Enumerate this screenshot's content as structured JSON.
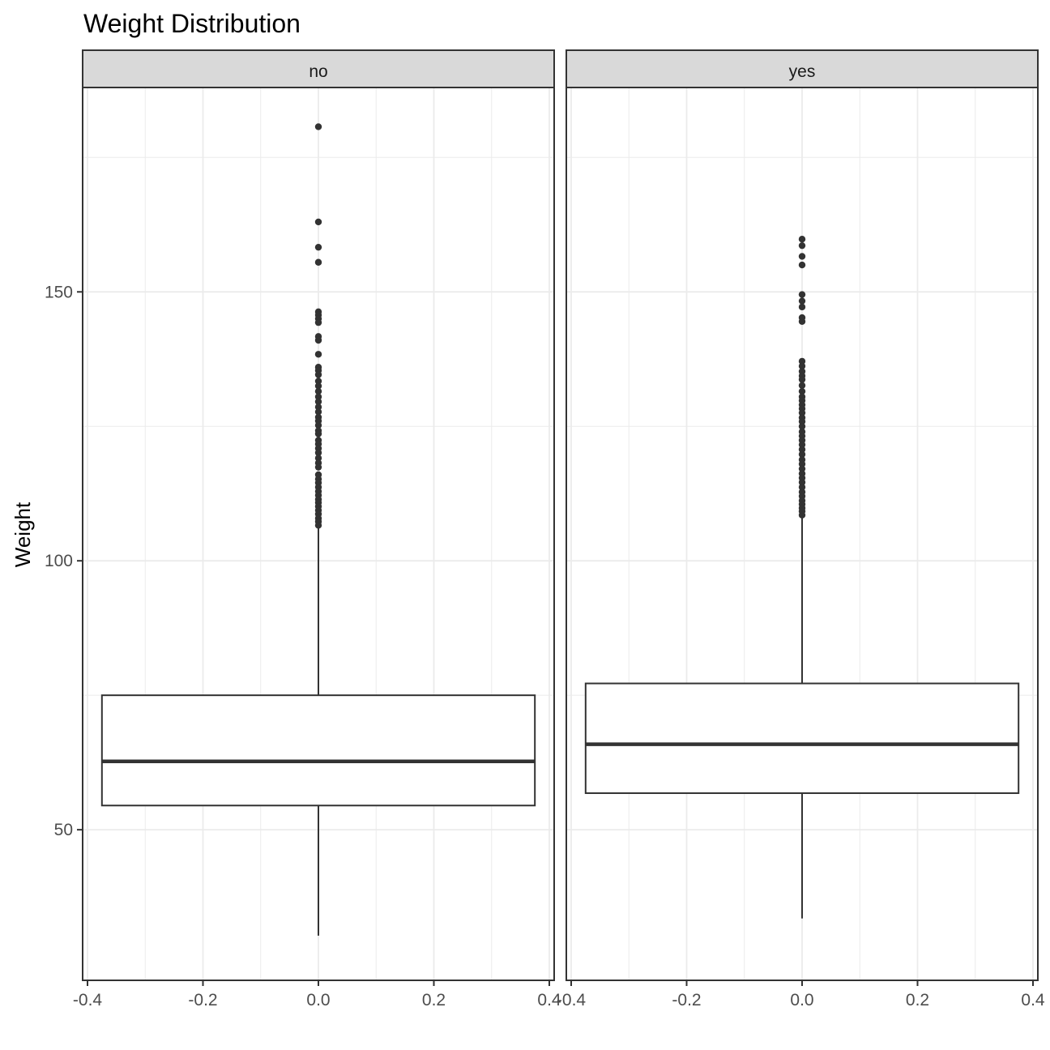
{
  "chart_data": {
    "type": "boxplot",
    "title": "Weight Distribution",
    "xlabel": "",
    "ylabel": "Weight",
    "facets": [
      "no",
      "yes"
    ],
    "xlim": [
      -0.4,
      0.4
    ],
    "ylim": [
      22,
      188
    ],
    "x_ticks": [
      -0.4,
      -0.2,
      0.0,
      0.2,
      0.4
    ],
    "x_tick_labels": [
      "-0.4",
      "-0.2",
      "0.0",
      "0.2",
      "0.4"
    ],
    "y_ticks": [
      50,
      100,
      150
    ],
    "y_tick_labels": [
      "50",
      "100",
      "150"
    ],
    "grid": true,
    "series": [
      {
        "facet": "no",
        "box_width": [
          -0.375,
          0.375
        ],
        "whisker_low": 30.3,
        "q1": 54.5,
        "median": 62.7,
        "q3": 75.0,
        "whisker_high": 106.5,
        "outliers": [
          180.7,
          163.0,
          158.3,
          155.5,
          146.3,
          145.7,
          145.0,
          144.3,
          141.7,
          141.0,
          138.4,
          136.0,
          135.4,
          134.6,
          133.4,
          132.5,
          131.5,
          130.5,
          129.6,
          128.6,
          127.7,
          126.7,
          126.0,
          125.2,
          124.2,
          123.6,
          122.4,
          121.7,
          120.9,
          120.1,
          119.1,
          118.2,
          117.4,
          116.0,
          115.2,
          114.5,
          113.7,
          112.9,
          112.2,
          111.4,
          110.8,
          110.1,
          109.4,
          108.7,
          107.9,
          107.3,
          106.6
        ]
      },
      {
        "facet": "yes",
        "box_width": [
          -0.375,
          0.375
        ],
        "whisker_low": 33.5,
        "q1": 56.8,
        "median": 65.9,
        "q3": 77.2,
        "whisker_high": 108.2,
        "outliers": [
          159.8,
          158.6,
          156.6,
          155.0,
          149.5,
          148.3,
          147.2,
          145.2,
          144.5,
          137.1,
          136.2,
          135.2,
          134.4,
          133.7,
          132.6,
          131.5,
          130.5,
          129.8,
          129.0,
          128.3,
          127.5,
          126.6,
          125.9,
          125.0,
          124.0,
          123.2,
          122.4,
          121.6,
          120.7,
          119.8,
          118.8,
          118.0,
          117.1,
          116.2,
          115.4,
          114.6,
          113.7,
          112.8,
          112.0,
          111.2,
          110.5,
          109.8,
          109.2,
          108.5
        ]
      }
    ],
    "colors": {
      "box_line": "#333333",
      "grid": "#ebebeb",
      "panel_border": "#333333",
      "strip_fill": "#d9d9d9",
      "tick_text": "#4d4d4d"
    }
  }
}
